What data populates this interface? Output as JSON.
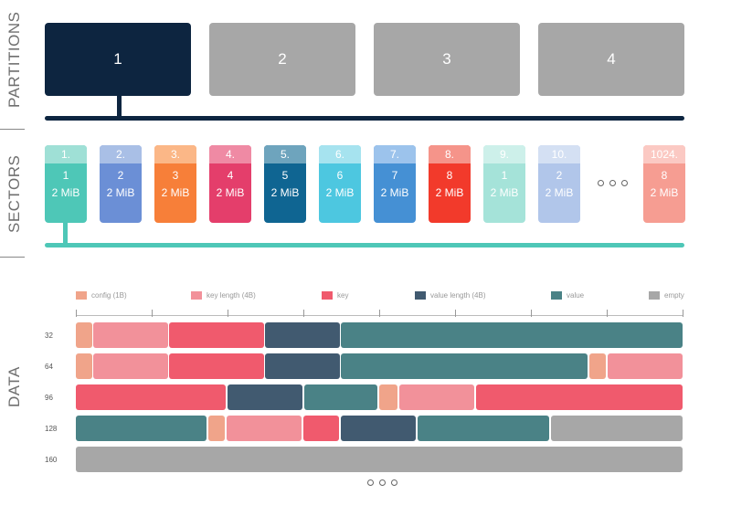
{
  "labels": {
    "partitions": "PARTITIONS",
    "sectors": "SECTORS",
    "data": "DATA"
  },
  "colors": {
    "navy": "#0d2540",
    "gray": "#a7a7a7",
    "teal": "#4ec7b7",
    "config": "#f0a48a",
    "key_length": "#f2919a",
    "key": "#f05a6d",
    "value_length": "#415a70",
    "value": "#4a8286",
    "empty": "#a7a7a7"
  },
  "partitions": [
    {
      "label": "1",
      "active": true
    },
    {
      "label": "2",
      "active": false
    },
    {
      "label": "3",
      "active": false
    },
    {
      "label": "4",
      "active": false
    }
  ],
  "sectors": [
    {
      "index": "1.",
      "num": "1",
      "size": "2 MiB",
      "top": "#9fe0d6",
      "body": "#4ec7b7"
    },
    {
      "index": "2.",
      "num": "2",
      "size": "2 MiB",
      "top": "#a9bfe6",
      "body": "#6b8fd6"
    },
    {
      "index": "3.",
      "num": "3",
      "size": "2 MiB",
      "top": "#fbb787",
      "body": "#f77f39"
    },
    {
      "index": "4.",
      "num": "4",
      "size": "2 MiB",
      "top": "#ef8aa4",
      "body": "#e43e6b"
    },
    {
      "index": "5.",
      "num": "5",
      "size": "2 MiB",
      "top": "#6ea4bd",
      "body": "#0f6592"
    },
    {
      "index": "6.",
      "num": "6",
      "size": "2 MiB",
      "top": "#a6e3ef",
      "body": "#4dc7e0"
    },
    {
      "index": "7.",
      "num": "7",
      "size": "2 MiB",
      "top": "#9cc3ec",
      "body": "#4590d4"
    },
    {
      "index": "8.",
      "num": "8",
      "size": "2 MiB",
      "top": "#f5948a",
      "body": "#f23a2b"
    },
    {
      "index": "9.",
      "num": "1",
      "size": "2 MiB",
      "top": "#cdf0ea",
      "body": "#a5e3d9"
    },
    {
      "index": "10.",
      "num": "2",
      "size": "2 MiB",
      "top": "#d4e0f3",
      "body": "#b1c6ea"
    },
    {
      "index": "1024.",
      "num": "8",
      "size": "2 MiB",
      "top": "#fbc9c3",
      "body": "#f69d92"
    }
  ],
  "legend": [
    {
      "label": "config (1B)",
      "type": "config"
    },
    {
      "label": "key length (4B)",
      "type": "key_length"
    },
    {
      "label": "key",
      "type": "key"
    },
    {
      "label": "value length (4B)",
      "type": "value_length"
    },
    {
      "label": "value",
      "type": "value"
    },
    {
      "label": "empty",
      "type": "empty"
    }
  ],
  "rows": [
    {
      "label": "32",
      "segments": [
        [
          "config",
          0,
          18
        ],
        [
          "key_length",
          19,
          101
        ],
        [
          "key",
          102,
          206
        ],
        [
          "value_length",
          207,
          289
        ],
        [
          "value",
          290,
          664
        ]
      ]
    },
    {
      "label": "64",
      "segments": [
        [
          "config",
          0,
          18
        ],
        [
          "key_length",
          19,
          101
        ],
        [
          "key",
          102,
          206
        ],
        [
          "value_length",
          207,
          289
        ],
        [
          "value",
          290,
          560
        ],
        [
          "config",
          562,
          580
        ],
        [
          "key_length",
          582,
          664
        ]
      ]
    },
    {
      "label": "96",
      "segments": [
        [
          "key",
          0,
          164
        ],
        [
          "value_length",
          166,
          248
        ],
        [
          "value",
          250,
          330
        ],
        [
          "config",
          332,
          352
        ],
        [
          "key_length",
          354,
          436
        ],
        [
          "key",
          438,
          664
        ]
      ]
    },
    {
      "label": "128",
      "segments": [
        [
          "value",
          0,
          143
        ],
        [
          "config",
          145,
          163
        ],
        [
          "key_length",
          165,
          247
        ],
        [
          "key",
          249,
          288
        ],
        [
          "value_length",
          290,
          372
        ],
        [
          "value",
          374,
          518
        ],
        [
          "empty",
          520,
          664
        ]
      ]
    },
    {
      "label": "160",
      "segments": [
        [
          "empty",
          0,
          664
        ]
      ]
    }
  ]
}
